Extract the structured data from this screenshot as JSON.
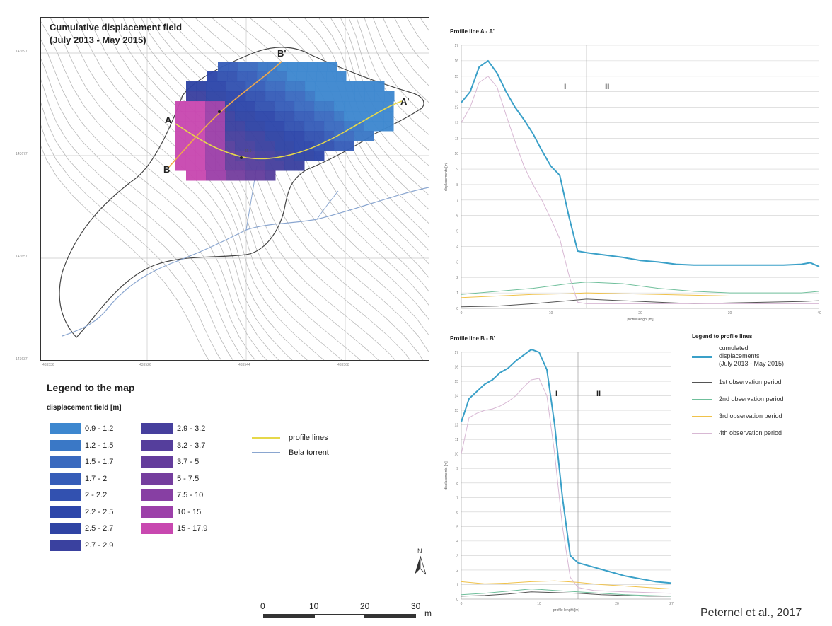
{
  "map": {
    "title_line1": "Cumulative displacement field",
    "title_line2": "(July 2013 - May 2015)",
    "point_labels": {
      "a": "A",
      "a_prime": "A'",
      "b": "B",
      "b_prime": "B'"
    },
    "y_coords": [
      "143697",
      "143677",
      "143657",
      "143637"
    ],
    "x_coords": [
      "433536",
      "433526",
      "433544",
      "433568"
    ]
  },
  "map_legend": {
    "title": "Legend to the map",
    "subtitle": "displacement field [m]",
    "items": [
      {
        "label": "0.9 - 1.2",
        "color": "#3d87cf"
      },
      {
        "label": "1.2 - 1.5",
        "color": "#3a78c6"
      },
      {
        "label": "1.5 - 1.7",
        "color": "#3a6abf"
      },
      {
        "label": "1.7 - 2",
        "color": "#365db8"
      },
      {
        "label": "2 - 2.2",
        "color": "#3251b0"
      },
      {
        "label": "2.2 - 2.5",
        "color": "#2d46aa"
      },
      {
        "label": "2.5 - 2.7",
        "color": "#2f44a4"
      },
      {
        "label": "2.7 - 2.9",
        "color": "#3a419f"
      },
      {
        "label": "2.9 - 3.2",
        "color": "#463f9d"
      },
      {
        "label": "3.2 - 3.7",
        "color": "#553e9c"
      },
      {
        "label": "3.7 - 5",
        "color": "#643d9c"
      },
      {
        "label": "5 - 7.5",
        "color": "#753e9e"
      },
      {
        "label": "7.5 - 10",
        "color": "#873fa3"
      },
      {
        "label": "10 - 15",
        "color": "#9c40a9"
      },
      {
        "label": "15 - 17.9",
        "color": "#c848b0"
      }
    ],
    "lines": [
      {
        "label": "profile lines",
        "color": "#e6d84a"
      },
      {
        "label": "Bela torrent",
        "color": "#8aa6d0"
      }
    ]
  },
  "scale_bar": {
    "labels": [
      "0",
      "10",
      "20",
      "30"
    ],
    "unit": "m"
  },
  "north_label": "N",
  "profile_legend": {
    "title": "Legend to profile lines",
    "items": [
      {
        "label_lines": [
          "cumulated",
          "displacements",
          "(July 2013 - May 2015)"
        ],
        "color": "#3aa0c8",
        "width": 3
      },
      {
        "label_lines": [
          "1st observation period"
        ],
        "color": "#555555",
        "width": 1.5
      },
      {
        "label_lines": [
          "2nd observation period"
        ],
        "color": "#6fbf9b",
        "width": 1.5
      },
      {
        "label_lines": [
          "3rd observation period"
        ],
        "color": "#f0c24a",
        "width": 1.5
      },
      {
        "label_lines": [
          "4th observation period"
        ],
        "color": "#d8b8d4",
        "width": 1.5
      }
    ]
  },
  "chart_data": [
    {
      "type": "line",
      "title": "Profile line A - A'",
      "xlabel": "profile lenght [m]",
      "ylabel": "displacements [m]",
      "xlim": [
        0,
        40
      ],
      "ylim": [
        0,
        17
      ],
      "x_ticks": [
        "0",
        "10",
        "20",
        "30",
        "40"
      ],
      "y_ticks": [
        "0",
        "1",
        "2",
        "3",
        "4",
        "5",
        "6",
        "7",
        "8",
        "9",
        "10",
        "11",
        "12",
        "13",
        "14",
        "15",
        "16",
        "17"
      ],
      "zone_divider_x": 14,
      "zones": [
        "I",
        "II"
      ],
      "series": [
        {
          "name": "cumulated displacements",
          "color": "#3aa0c8",
          "width": 2,
          "x": [
            0,
            1,
            2,
            3,
            4,
            5,
            6,
            7,
            8,
            9,
            10,
            11,
            12,
            13,
            14,
            16,
            18,
            20,
            22,
            24,
            26,
            28,
            30,
            32,
            34,
            36,
            38,
            39,
            40
          ],
          "y": [
            13.3,
            14,
            15.6,
            16,
            15.2,
            14,
            13,
            12.2,
            11.3,
            10.2,
            9.2,
            8.6,
            6,
            3.7,
            3.6,
            3.45,
            3.3,
            3.1,
            3.0,
            2.85,
            2.8,
            2.8,
            2.8,
            2.8,
            2.8,
            2.8,
            2.85,
            2.95,
            2.7
          ]
        },
        {
          "name": "1st observation period",
          "color": "#555555",
          "width": 1,
          "x": [
            0,
            4,
            8,
            12,
            14,
            18,
            22,
            26,
            30,
            34,
            38,
            40
          ],
          "y": [
            0.1,
            0.15,
            0.3,
            0.5,
            0.6,
            0.5,
            0.4,
            0.3,
            0.35,
            0.4,
            0.45,
            0.5
          ]
        },
        {
          "name": "2nd observation period",
          "color": "#6fbf9b",
          "width": 1,
          "x": [
            0,
            4,
            8,
            12,
            14,
            18,
            22,
            26,
            30,
            34,
            38,
            40
          ],
          "y": [
            0.9,
            1.1,
            1.3,
            1.6,
            1.7,
            1.6,
            1.3,
            1.1,
            1.0,
            1.0,
            1.0,
            1.1
          ]
        },
        {
          "name": "3rd observation period",
          "color": "#f0c24a",
          "width": 1,
          "x": [
            0,
            4,
            8,
            12,
            14,
            18,
            22,
            26,
            30,
            34,
            38,
            40
          ],
          "y": [
            0.7,
            0.8,
            0.9,
            0.95,
            1.0,
            0.95,
            0.9,
            0.85,
            0.8,
            0.8,
            0.8,
            0.8
          ]
        },
        {
          "name": "4th observation period",
          "color": "#d8b8d4",
          "width": 1,
          "x": [
            0,
            1,
            2,
            3,
            4,
            5,
            6,
            7,
            8,
            9,
            10,
            11,
            12,
            13,
            14,
            18,
            22,
            26,
            30,
            34,
            38,
            40
          ],
          "y": [
            12,
            13,
            14.6,
            15,
            14.3,
            12.5,
            10.8,
            9.2,
            8,
            7,
            5.8,
            4.5,
            2.2,
            0.4,
            0.3,
            0.3,
            0.3,
            0.3,
            0.3,
            0.3,
            0.3,
            0.3
          ]
        }
      ]
    },
    {
      "type": "line",
      "title": "Profile line B - B'",
      "xlabel": "profile lenght [m]",
      "ylabel": "displacements [m]",
      "xlim": [
        0,
        27
      ],
      "ylim": [
        0,
        17
      ],
      "x_ticks": [
        "0",
        "10",
        "20",
        "27"
      ],
      "y_ticks": [
        "0",
        "1",
        "2",
        "3",
        "4",
        "5",
        "6",
        "7",
        "8",
        "9",
        "10",
        "11",
        "12",
        "13",
        "14",
        "15",
        "16",
        "17"
      ],
      "zone_divider_x": 15,
      "zones": [
        "I",
        "II"
      ],
      "series": [
        {
          "name": "cumulated displacements",
          "color": "#3aa0c8",
          "width": 2,
          "x": [
            0,
            1,
            2,
            3,
            4,
            5,
            6,
            7,
            8,
            9,
            10,
            11,
            12,
            13,
            14,
            15,
            17,
            19,
            21,
            23,
            25,
            27
          ],
          "y": [
            12.2,
            13.8,
            14.3,
            14.8,
            15.1,
            15.6,
            15.9,
            16.4,
            16.8,
            17.2,
            17.0,
            15.8,
            12,
            7,
            3,
            2.5,
            2.2,
            1.9,
            1.6,
            1.4,
            1.2,
            1.1
          ]
        },
        {
          "name": "1st observation period",
          "color": "#555555",
          "width": 1,
          "x": [
            0,
            3,
            6,
            9,
            12,
            15,
            18,
            21,
            24,
            27
          ],
          "y": [
            0.2,
            0.25,
            0.35,
            0.5,
            0.45,
            0.4,
            0.3,
            0.25,
            0.2,
            0.2
          ]
        },
        {
          "name": "2nd observation period",
          "color": "#6fbf9b",
          "width": 1,
          "x": [
            0,
            3,
            6,
            9,
            12,
            15,
            18,
            21,
            24,
            27
          ],
          "y": [
            0.3,
            0.4,
            0.55,
            0.7,
            0.6,
            0.5,
            0.4,
            0.3,
            0.25,
            0.2
          ]
        },
        {
          "name": "3rd observation period",
          "color": "#f0c24a",
          "width": 1,
          "x": [
            0,
            3,
            6,
            9,
            12,
            15,
            18,
            21,
            24,
            27
          ],
          "y": [
            1.2,
            1.05,
            1.1,
            1.2,
            1.25,
            1.15,
            1.0,
            0.9,
            0.8,
            0.7
          ]
        },
        {
          "name": "4th observation period",
          "color": "#d8b8d4",
          "width": 1,
          "x": [
            0,
            1,
            2,
            3,
            4,
            5,
            6,
            7,
            8,
            9,
            10,
            11,
            12,
            13,
            14,
            15,
            17,
            21,
            27
          ],
          "y": [
            10,
            12.5,
            12.8,
            13,
            13.1,
            13.3,
            13.6,
            14,
            14.6,
            15.1,
            15.2,
            14,
            10,
            5,
            1.5,
            0.8,
            0.6,
            0.5,
            0.4
          ]
        }
      ]
    }
  ],
  "citation": "Peternel et al., 2017"
}
